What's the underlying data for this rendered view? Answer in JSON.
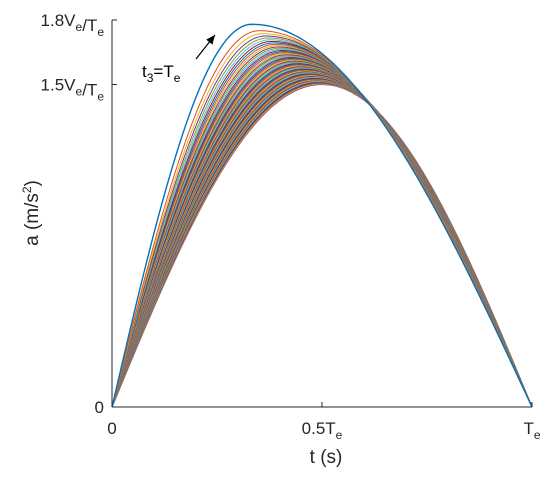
{
  "chart_data": {
    "type": "line",
    "title": "",
    "xlabel": "t (s)",
    "ylabel": "a (m/s2)",
    "xlim": [
      0,
      1
    ],
    "ylim": [
      0,
      1.8
    ],
    "x_ticks": [
      {
        "value": 0,
        "main": "0",
        "sub": ""
      },
      {
        "value": 0.5,
        "main": "0.5T",
        "sub": "e"
      },
      {
        "value": 1,
        "main": "T",
        "sub": "e"
      }
    ],
    "y_ticks": [
      {
        "value": 0,
        "parts": [
          [
            "0",
            ""
          ]
        ]
      },
      {
        "value": 1.5,
        "parts": [
          [
            "1.5V",
            "e"
          ],
          [
            "/T",
            "e"
          ]
        ]
      },
      {
        "value": 1.8,
        "parts": [
          [
            "1.8V",
            "e"
          ],
          [
            "/T",
            "e"
          ]
        ]
      }
    ],
    "annotation": {
      "main": "t",
      "sub1": "3",
      "mid": "=T",
      "sub2": "e",
      "arrow_target": {
        "x": 0.245,
        "y": 1.73
      }
    },
    "family": {
      "description_units": "t in units of Te, a in units of Ve/Te",
      "peak_time_start": 0.333,
      "peak_time_end": 0.5,
      "peak_value_start": 1.78,
      "peak_value_end": 1.5,
      "num_curves": 60,
      "colors": [
        "#0072BD",
        "#D95319",
        "#EDB120",
        "#7E2F8E",
        "#77AC30",
        "#4DBEEE",
        "#A2142F"
      ]
    }
  },
  "axes": {
    "ylabel_main": "a (m/s",
    "ylabel_sup": "2",
    "ylabel_end": ")",
    "xlabel": "t (s)"
  }
}
